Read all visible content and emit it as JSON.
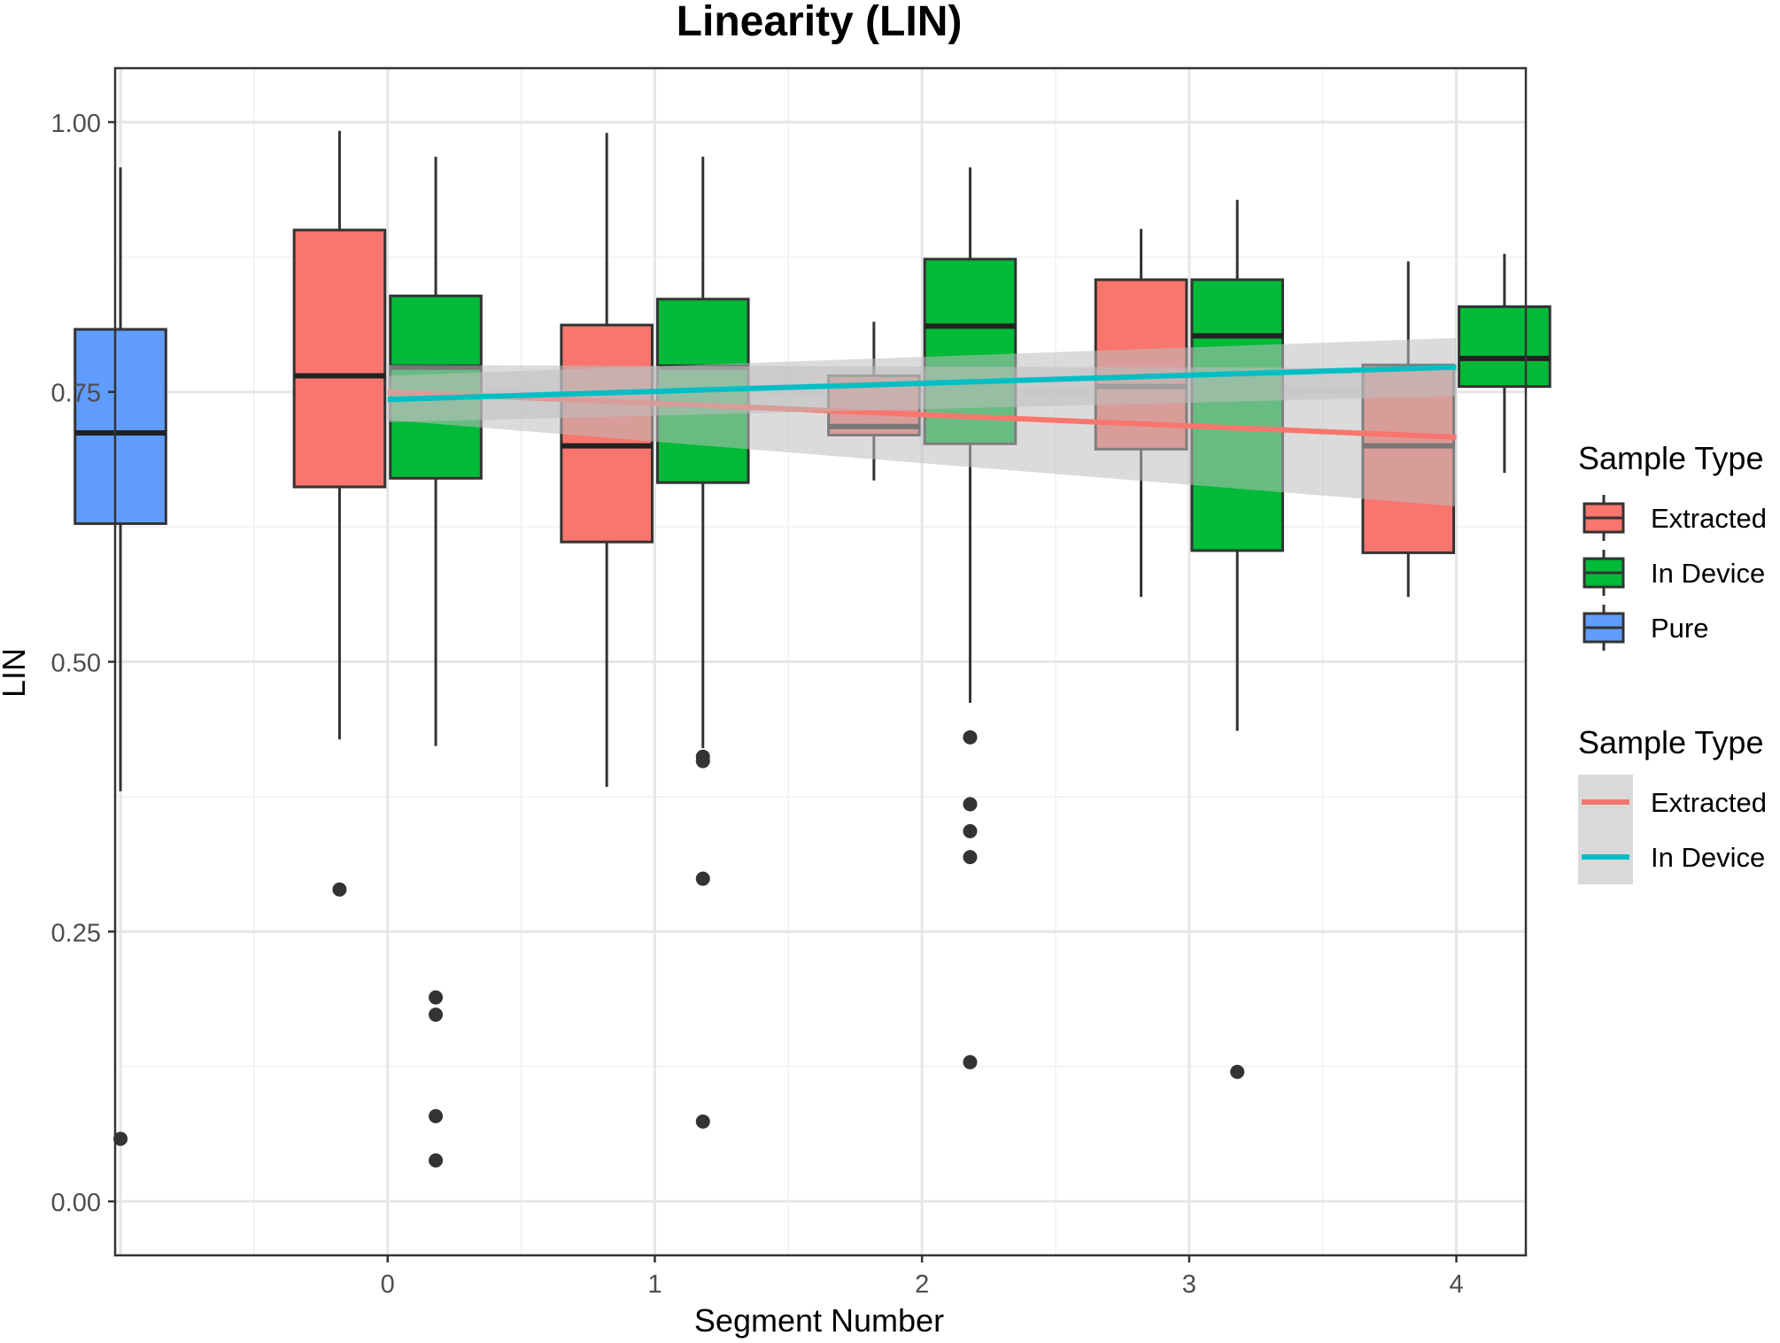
{
  "chart_data": {
    "type": "boxplot",
    "title": "Linearity (LIN)",
    "xlabel": "Segment Number",
    "ylabel": "LIN",
    "xlim": [
      -1.02,
      4.26
    ],
    "ylim": [
      -0.05,
      1.05
    ],
    "x_ticks": [
      "0",
      "1",
      "2",
      "3",
      "4"
    ],
    "y_ticks": [
      "0.00",
      "0.25",
      "0.50",
      "0.75",
      "1.00"
    ],
    "grid": true,
    "legend_position": "right",
    "colors": {
      "Extracted": "#F8766D",
      "In Device": "#00BA38",
      "Pure": "#619CFF",
      "trend_Extracted": "#F8766D",
      "trend_In Device": "#00BFC4",
      "ribbon": "#bdbdbd"
    },
    "boxes": [
      {
        "group": "Pure",
        "segment": "Pure",
        "x": -1.0,
        "min": 0.38,
        "q1": 0.628,
        "median": 0.712,
        "q3": 0.808,
        "max": 0.958,
        "outliers": [
          0.058
        ]
      },
      {
        "group": "Extracted",
        "segment": 0,
        "x": -0.18,
        "min": 0.428,
        "q1": 0.662,
        "median": 0.765,
        "q3": 0.9,
        "max": 0.992,
        "outliers": [
          0.289
        ]
      },
      {
        "group": "In Device",
        "segment": 0,
        "x": 0.18,
        "min": 0.422,
        "q1": 0.67,
        "median": 0.773,
        "q3": 0.839,
        "max": 0.968,
        "outliers": [
          0.189,
          0.173,
          0.079,
          0.038
        ]
      },
      {
        "group": "Extracted",
        "segment": 1,
        "x": 0.82,
        "min": 0.384,
        "q1": 0.611,
        "median": 0.7,
        "q3": 0.812,
        "max": 0.99,
        "outliers": []
      },
      {
        "group": "In Device",
        "segment": 1,
        "x": 1.18,
        "min": 0.42,
        "q1": 0.666,
        "median": 0.773,
        "q3": 0.836,
        "max": 0.968,
        "outliers": [
          0.412,
          0.408,
          0.299,
          0.074
        ]
      },
      {
        "group": "Extracted",
        "segment": 2,
        "x": 1.82,
        "min": 0.668,
        "q1": 0.71,
        "median": 0.718,
        "q3": 0.765,
        "max": 0.815,
        "outliers": []
      },
      {
        "group": "In Device",
        "segment": 2,
        "x": 2.18,
        "min": 0.462,
        "q1": 0.702,
        "median": 0.811,
        "q3": 0.873,
        "max": 0.958,
        "outliers": [
          0.43,
          0.368,
          0.343,
          0.319,
          0.129
        ]
      },
      {
        "group": "Extracted",
        "segment": 3,
        "x": 2.82,
        "min": 0.56,
        "q1": 0.697,
        "median": 0.755,
        "q3": 0.854,
        "max": 0.901,
        "outliers": []
      },
      {
        "group": "In Device",
        "segment": 3,
        "x": 3.18,
        "min": 0.436,
        "q1": 0.603,
        "median": 0.802,
        "q3": 0.854,
        "max": 0.928,
        "outliers": [
          0.12
        ]
      },
      {
        "group": "Extracted",
        "segment": 4,
        "x": 3.82,
        "min": 0.56,
        "q1": 0.601,
        "median": 0.7,
        "q3": 0.775,
        "max": 0.871,
        "outliers": []
      },
      {
        "group": "In Device",
        "segment": 4,
        "x": 4.18,
        "min": 0.675,
        "q1": 0.755,
        "median": 0.781,
        "q3": 0.829,
        "max": 0.878,
        "outliers": []
      }
    ],
    "trends": [
      {
        "name": "Extracted",
        "x": [
          0,
          4
        ],
        "y": [
          0.75,
          0.708
        ],
        "ribbon_upper": [
          0.775,
          0.772
        ],
        "ribbon_lower": [
          0.724,
          0.644
        ]
      },
      {
        "name": "In Device",
        "x": [
          0,
          4
        ],
        "y": [
          0.743,
          0.773
        ],
        "ribbon_upper": [
          0.765,
          0.8
        ],
        "ribbon_lower": [
          0.722,
          0.746
        ]
      }
    ],
    "legend_fill": {
      "title": "Sample Type",
      "items": [
        "Extracted",
        "In Device",
        "Pure"
      ]
    },
    "legend_line": {
      "title": "Sample Type",
      "items": [
        "Extracted",
        "In Device"
      ]
    }
  }
}
